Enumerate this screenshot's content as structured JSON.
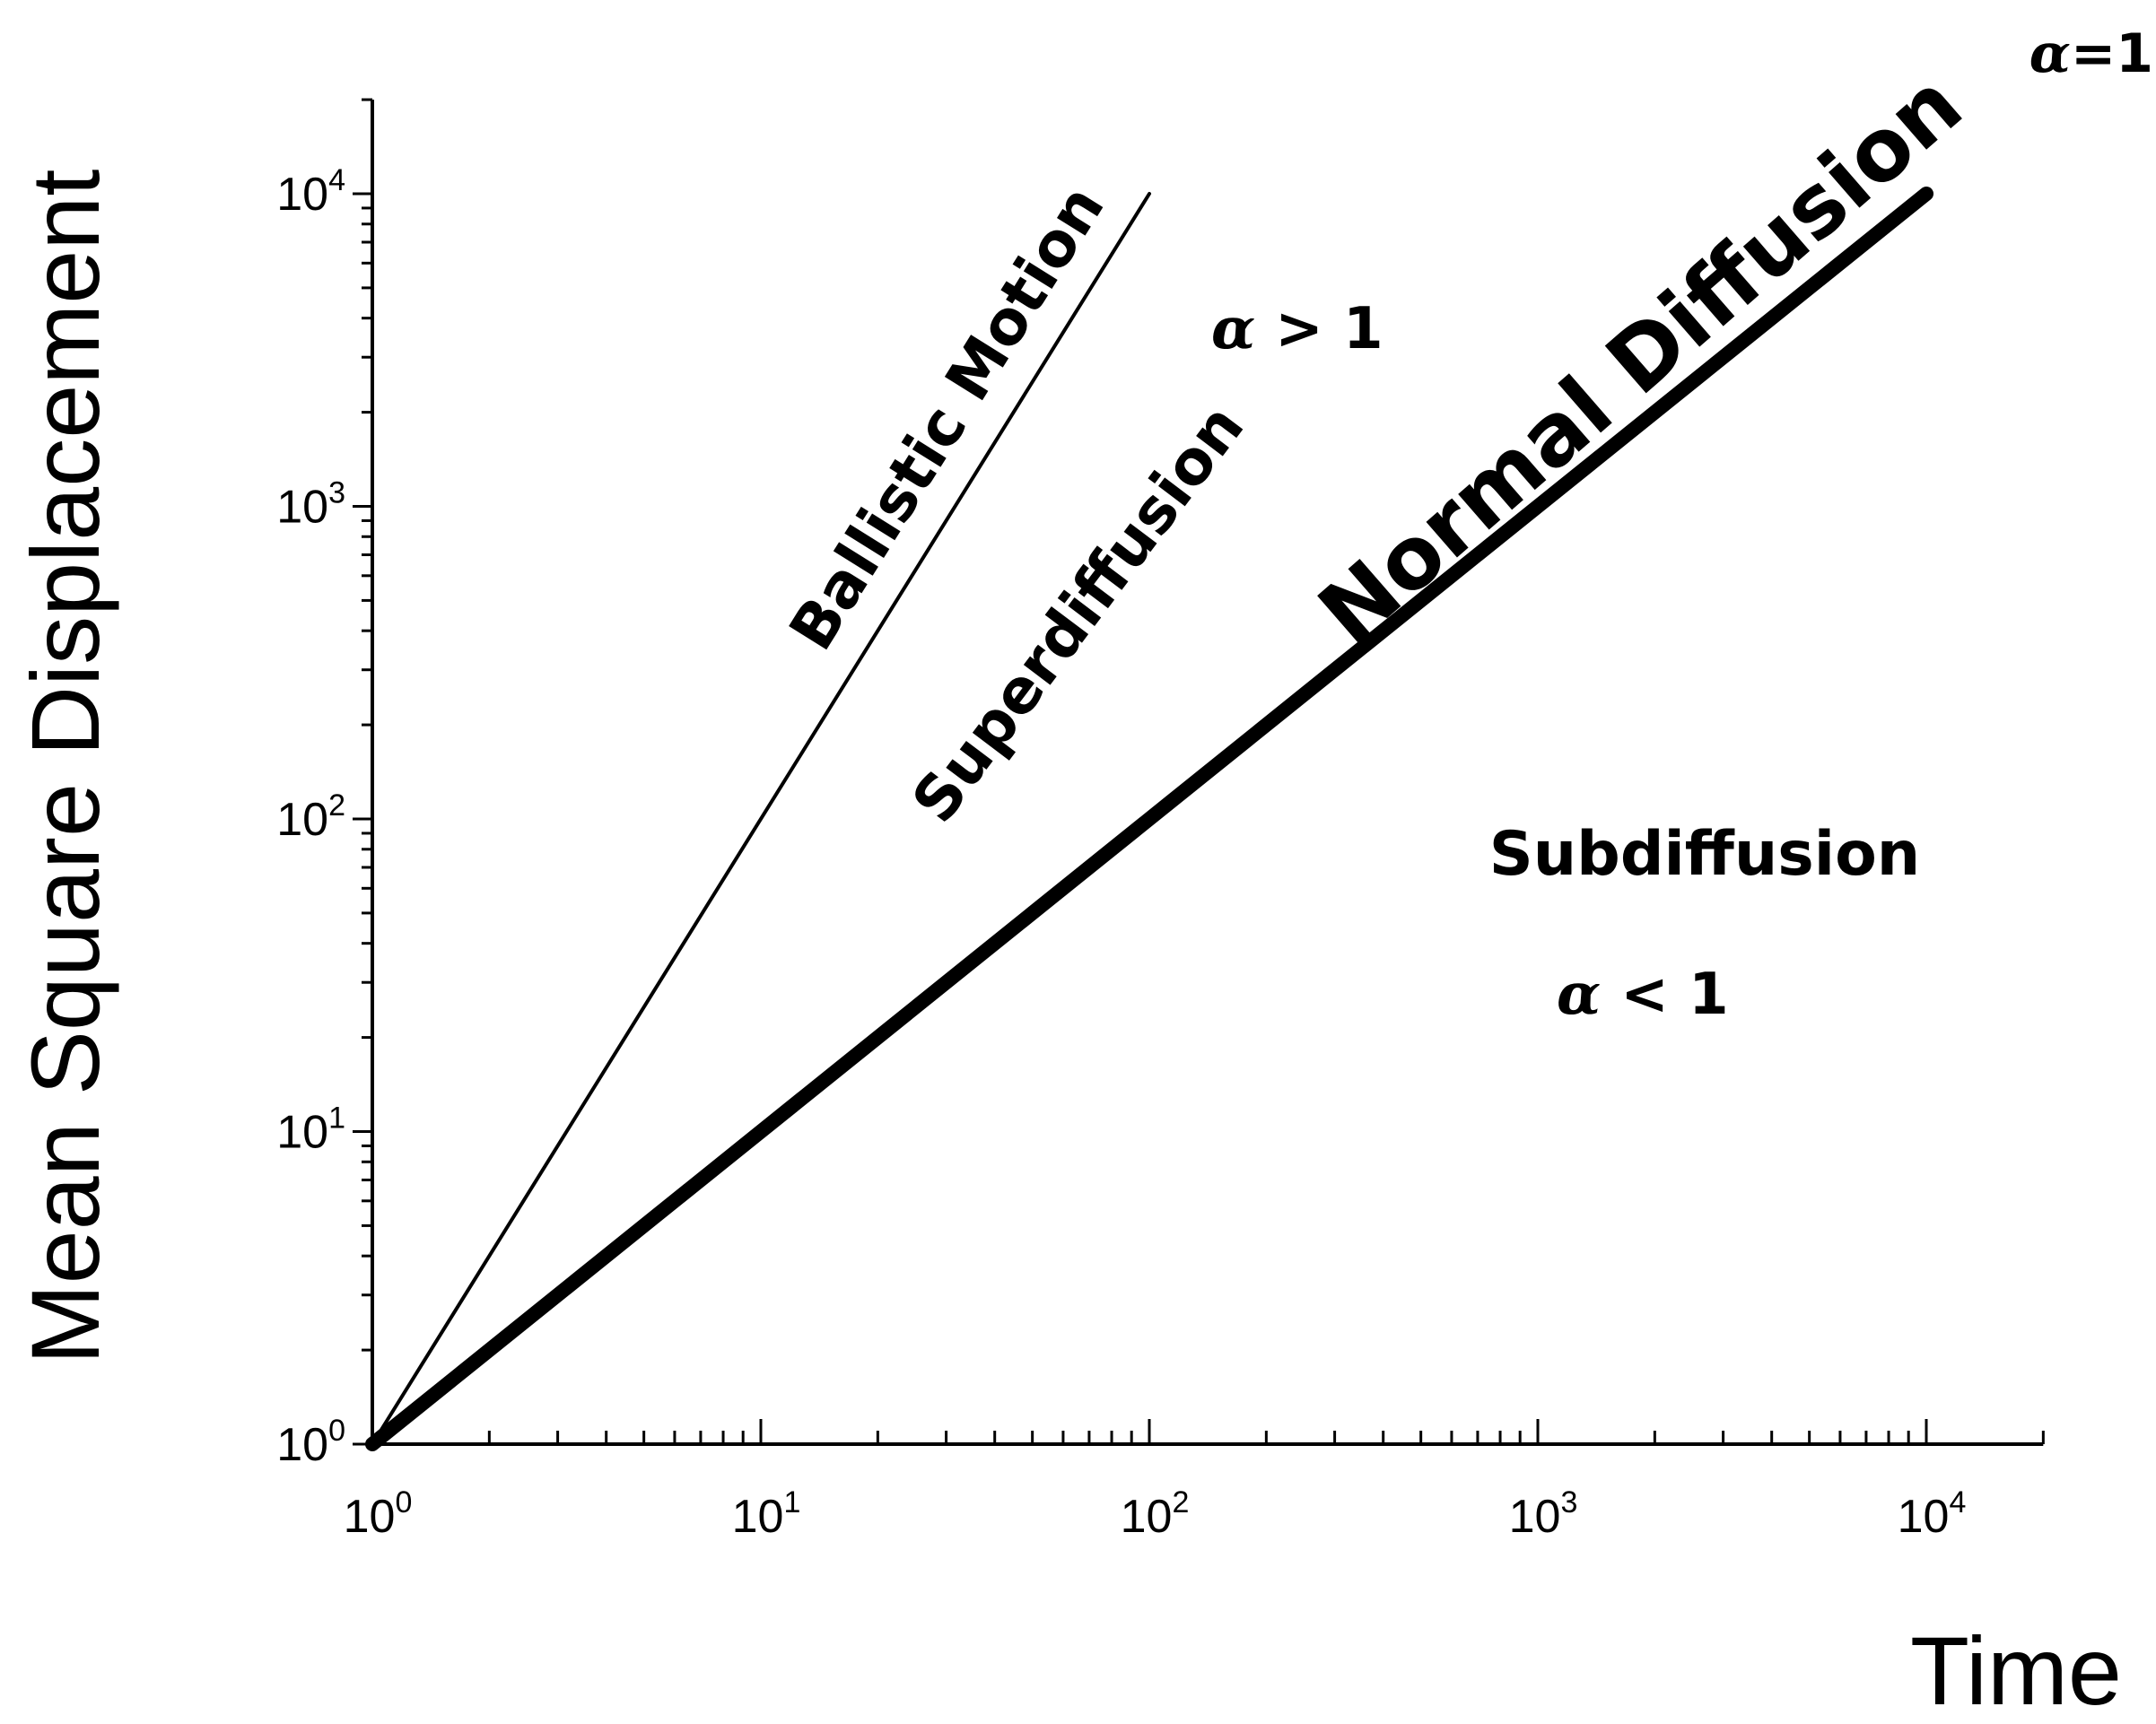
{
  "chart_data": {
    "type": "line",
    "xscale": "log",
    "yscale": "log",
    "xlabel": "Time",
    "ylabel": "Mean Square Displacement",
    "xlim": [
      1,
      20000
    ],
    "ylim": [
      1,
      20000
    ],
    "x_ticks": [
      {
        "value": 1,
        "base": "10",
        "exp": "0"
      },
      {
        "value": 10,
        "base": "10",
        "exp": "1"
      },
      {
        "value": 100,
        "base": "10",
        "exp": "2"
      },
      {
        "value": 1000,
        "base": "10",
        "exp": "3"
      },
      {
        "value": 10000,
        "base": "10",
        "exp": "4"
      }
    ],
    "y_ticks": [
      {
        "value": 1,
        "base": "10",
        "exp": "0"
      },
      {
        "value": 10,
        "base": "10",
        "exp": "1"
      },
      {
        "value": 100,
        "base": "10",
        "exp": "2"
      },
      {
        "value": 1000,
        "base": "10",
        "exp": "3"
      },
      {
        "value": 10000,
        "base": "10",
        "exp": "4"
      }
    ],
    "series": [
      {
        "key": "ballistic",
        "x": [
          1,
          100
        ],
        "y": [
          1,
          10000
        ],
        "color": "#000000"
      },
      {
        "key": "normal",
        "x": [
          1,
          10000
        ],
        "y": [
          1,
          10000
        ],
        "color": "#000000"
      }
    ],
    "annotations": {
      "ballistic": "Ballistic Motion",
      "superdiffusion": "Superdiffusion",
      "alpha_gt": "> 1",
      "normal": "Normal Diffusion",
      "alpha_eq": "=1",
      "subdiffusion": "Subdiffusion",
      "alpha_lt": "< 1",
      "alpha_symbol": "α"
    },
    "grid": false,
    "legend": "none"
  }
}
